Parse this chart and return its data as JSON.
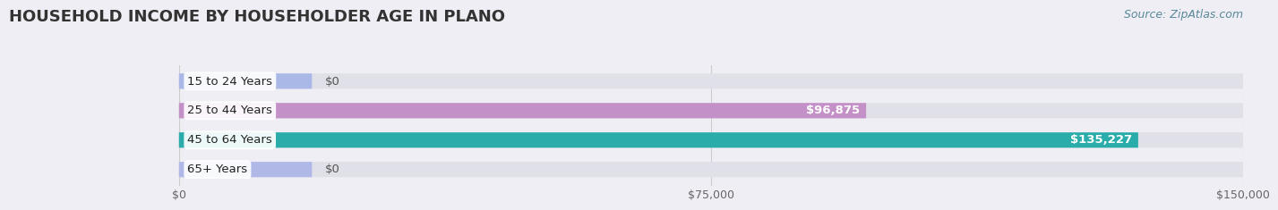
{
  "title": "HOUSEHOLD INCOME BY HOUSEHOLDER AGE IN PLANO",
  "source": "Source: ZipAtlas.com",
  "categories": [
    "15 to 24 Years",
    "25 to 44 Years",
    "45 to 64 Years",
    "65+ Years"
  ],
  "values": [
    0,
    96875,
    135227,
    0
  ],
  "bar_colors": [
    "#aab8e8",
    "#c490c8",
    "#2aacaa",
    "#b0b8e8"
  ],
  "bar_labels": [
    "$0",
    "$96,875",
    "$135,227",
    "$0"
  ],
  "xlim": [
    0,
    150000
  ],
  "xticks": [
    0,
    75000,
    150000
  ],
  "xticklabels": [
    "$0",
    "$75,000",
    "$150,000"
  ],
  "background_color": "#eeeef4",
  "bar_bg_color": "#e0e0e8",
  "title_fontsize": 13,
  "label_fontsize": 9.5,
  "tick_fontsize": 9,
  "source_fontsize": 9
}
